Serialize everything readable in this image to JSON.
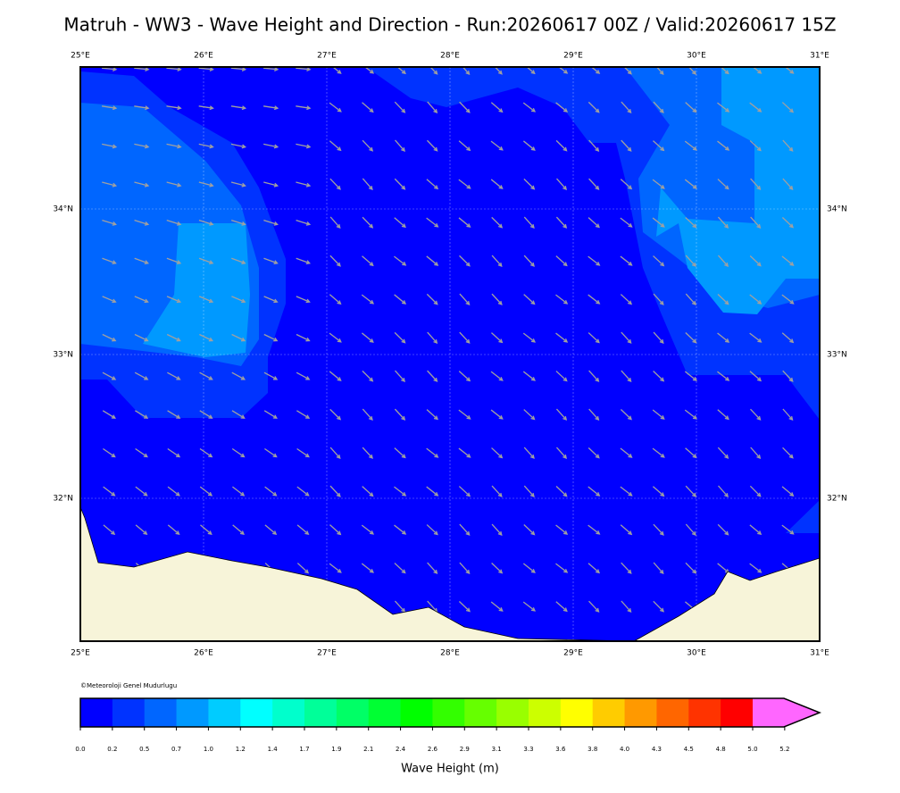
{
  "title": "Matruh - WW3 - Wave Height and Direction - Run:20260617 00Z / Valid:20260617 15Z",
  "map": {
    "lon_labels": [
      "25°E",
      "26°E",
      "27°E",
      "28°E",
      "29°E",
      "30°E",
      "31°E"
    ],
    "lat_labels": [
      "34°N",
      "33°N",
      "32°N"
    ],
    "credit": "©Meteoroloji Genel Mudurlugu"
  },
  "colorbar": {
    "colors": [
      "#0000ff",
      "#0033ff",
      "#0066ff",
      "#0099ff",
      "#00ccff",
      "#00ffff",
      "#00ffcc",
      "#00ff99",
      "#00ff66",
      "#00ff33",
      "#00ff00",
      "#33ff00",
      "#66ff00",
      "#99ff00",
      "#ccff00",
      "#ffff00",
      "#ffcc00",
      "#ff9900",
      "#ff6600",
      "#ff3300",
      "#ff0000",
      "#ff66ff"
    ],
    "tick_labels": [
      "0.0",
      "0.2",
      "0.5",
      "0.7",
      "1.0",
      "1.2",
      "1.4",
      "1.7",
      "1.9",
      "2.1",
      "2.4",
      "2.6",
      "2.9",
      "3.1",
      "3.3",
      "3.6",
      "3.8",
      "4.0",
      "4.3",
      "4.5",
      "4.8",
      "5.0",
      "5.2"
    ],
    "label": "Wave Height (m)"
  }
}
